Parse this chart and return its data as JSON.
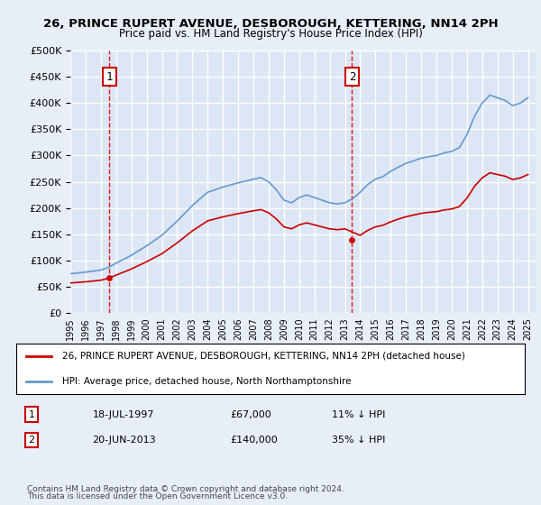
{
  "title_line1": "26, PRINCE RUPERT AVENUE, DESBOROUGH, KETTERING, NN14 2PH",
  "title_line2": "Price paid vs. HM Land Registry's House Price Index (HPI)",
  "ylabel": "",
  "background_color": "#e8eef8",
  "plot_bg_color": "#dce6f5",
  "grid_color": "#ffffff",
  "hpi_color": "#6699cc",
  "price_color": "#cc0000",
  "dashed_line_color": "#dd0000",
  "ylim_min": 0,
  "ylim_max": 500000,
  "ytick_step": 50000,
  "sale1_date": "1997-07-18",
  "sale1_price": 67000,
  "sale1_label": "1",
  "sale2_date": "2013-06-20",
  "sale2_price": 140000,
  "sale2_label": "2",
  "legend_line1": "26, PRINCE RUPERT AVENUE, DESBOROUGH, KETTERING, NN14 2PH (detached house)",
  "legend_line2": "HPI: Average price, detached house, North Northamptonshire",
  "footnote_line1": "Contains HM Land Registry data © Crown copyright and database right 2024.",
  "footnote_line2": "This data is licensed under the Open Government Licence v3.0.",
  "table_row1": [
    "1",
    "18-JUL-1997",
    "£67,000",
    "11% ↓ HPI"
  ],
  "table_row2": [
    "2",
    "20-JUN-2013",
    "£140,000",
    "35% ↓ HPI"
  ]
}
